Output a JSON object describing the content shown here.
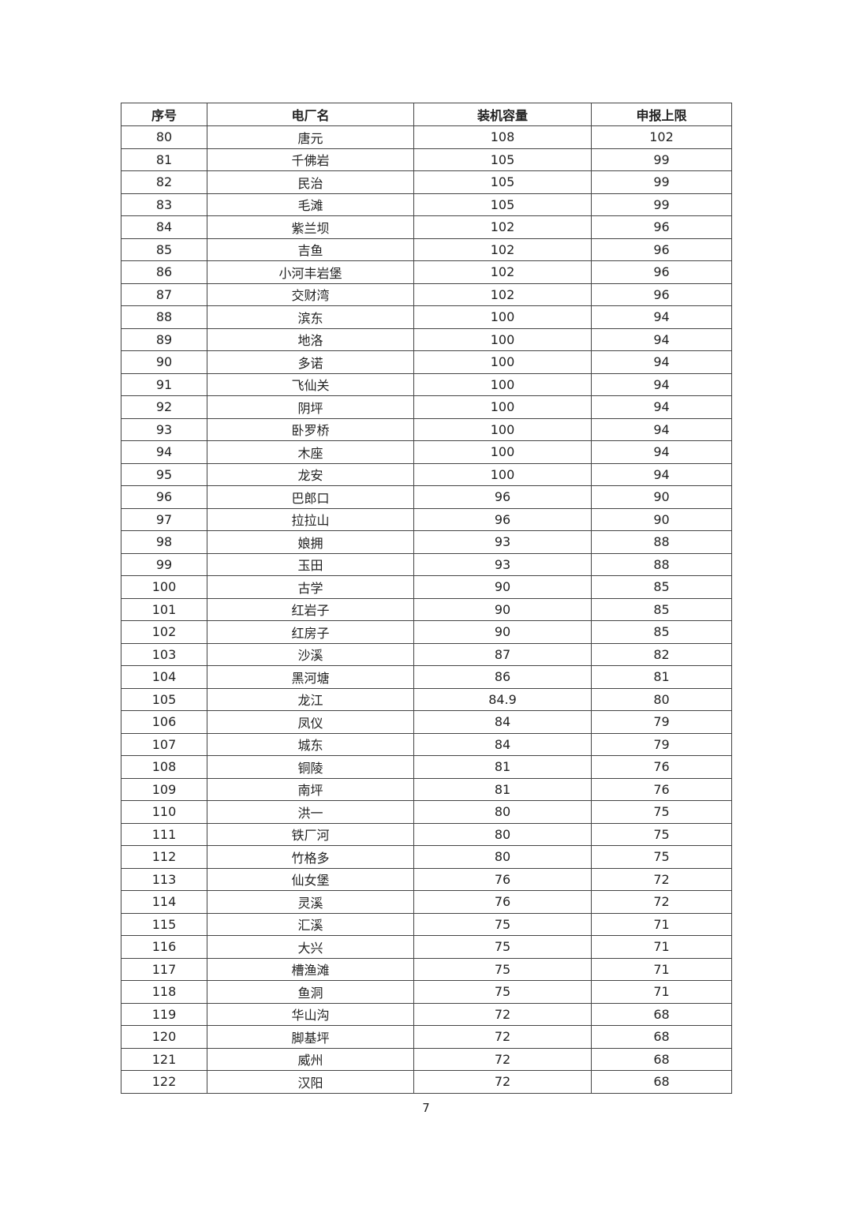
{
  "table": {
    "headers": [
      "序号",
      "电厂名",
      "装机容量",
      "申报上限"
    ],
    "rows": [
      [
        "80",
        "唐元",
        "108",
        "102"
      ],
      [
        "81",
        "千佛岩",
        "105",
        "99"
      ],
      [
        "82",
        "民治",
        "105",
        "99"
      ],
      [
        "83",
        "毛滩",
        "105",
        "99"
      ],
      [
        "84",
        "紫兰坝",
        "102",
        "96"
      ],
      [
        "85",
        "吉鱼",
        "102",
        "96"
      ],
      [
        "86",
        "小河丰岩堡",
        "102",
        "96"
      ],
      [
        "87",
        "交财湾",
        "102",
        "96"
      ],
      [
        "88",
        "滨东",
        "100",
        "94"
      ],
      [
        "89",
        "地洛",
        "100",
        "94"
      ],
      [
        "90",
        "多诺",
        "100",
        "94"
      ],
      [
        "91",
        "飞仙关",
        "100",
        "94"
      ],
      [
        "92",
        "阴坪",
        "100",
        "94"
      ],
      [
        "93",
        "卧罗桥",
        "100",
        "94"
      ],
      [
        "94",
        "木座",
        "100",
        "94"
      ],
      [
        "95",
        "龙安",
        "100",
        "94"
      ],
      [
        "96",
        "巴郎口",
        "96",
        "90"
      ],
      [
        "97",
        "拉拉山",
        "96",
        "90"
      ],
      [
        "98",
        "娘拥",
        "93",
        "88"
      ],
      [
        "99",
        "玉田",
        "93",
        "88"
      ],
      [
        "100",
        "古学",
        "90",
        "85"
      ],
      [
        "101",
        "红岩子",
        "90",
        "85"
      ],
      [
        "102",
        "红房子",
        "90",
        "85"
      ],
      [
        "103",
        "沙溪",
        "87",
        "82"
      ],
      [
        "104",
        "黑河塘",
        "86",
        "81"
      ],
      [
        "105",
        "龙江",
        "84.9",
        "80"
      ],
      [
        "106",
        "凤仪",
        "84",
        "79"
      ],
      [
        "107",
        "城东",
        "84",
        "79"
      ],
      [
        "108",
        "铜陵",
        "81",
        "76"
      ],
      [
        "109",
        "南坪",
        "81",
        "76"
      ],
      [
        "110",
        "洪一",
        "80",
        "75"
      ],
      [
        "111",
        "铁厂河",
        "80",
        "75"
      ],
      [
        "112",
        "竹格多",
        "80",
        "75"
      ],
      [
        "113",
        "仙女堡",
        "76",
        "72"
      ],
      [
        "114",
        "灵溪",
        "76",
        "72"
      ],
      [
        "115",
        "汇溪",
        "75",
        "71"
      ],
      [
        "116",
        "大兴",
        "75",
        "71"
      ],
      [
        "117",
        "槽渔滩",
        "75",
        "71"
      ],
      [
        "118",
        "鱼洞",
        "75",
        "71"
      ],
      [
        "119",
        "华山沟",
        "72",
        "68"
      ],
      [
        "120",
        "脚基坪",
        "72",
        "68"
      ],
      [
        "121",
        "威州",
        "72",
        "68"
      ],
      [
        "122",
        "汉阳",
        "72",
        "68"
      ]
    ]
  },
  "page_number": "7"
}
